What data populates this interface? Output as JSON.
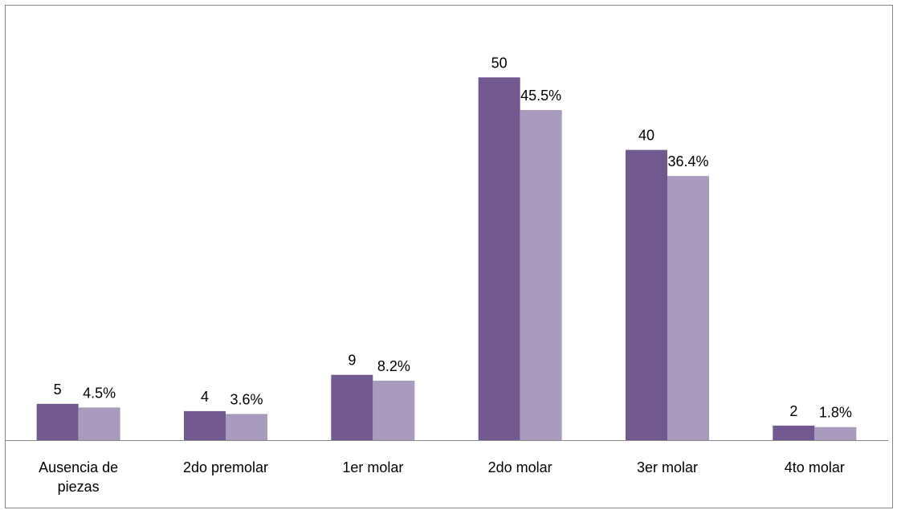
{
  "chart_data": {
    "type": "bar",
    "categories": [
      "Ausencia de piezas",
      "2do premolar",
      "1er molar",
      "2do molar",
      "3er molar",
      "4to molar"
    ],
    "series": [
      {
        "color": "#71588f",
        "values": [
          5,
          4,
          9,
          50,
          40,
          2
        ]
      },
      {
        "color": "#a99bbd",
        "values": [
          4.5,
          3.6,
          8.2,
          45.5,
          36.4,
          1.8
        ],
        "value_labels": [
          "4.5%",
          "3.6%",
          "8.2%",
          "45.5%",
          "36.4%",
          "1.8%"
        ]
      }
    ],
    "ylim": [
      0,
      60
    ]
  }
}
